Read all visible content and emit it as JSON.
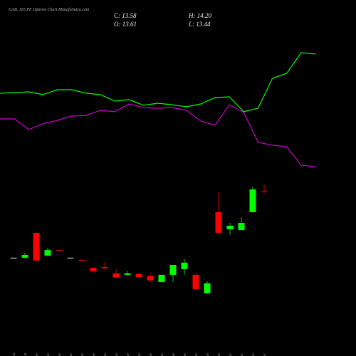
{
  "chart_data": {
    "type": "candlestick",
    "title": "GAIL 165 PE Options  Chart MunafaSutra.com",
    "header": {
      "close": "C: 13.58",
      "high": "H: 14.20",
      "open": "O: 13.61",
      "low": "L: 13.44"
    },
    "categories": [
      "29 Oct",
      "31 Oct",
      "03 Nov",
      "04 Nov",
      "06 Nov",
      "11 Nov",
      "12 Nov",
      "13 Nov",
      "14 Nov",
      "17 Nov",
      "18 Nov",
      "19 Nov",
      "20 Nov",
      "21 Nov",
      "24 Nov",
      "25 Nov",
      "26 Nov",
      "27 Nov",
      "28 Nov",
      "01 Dec",
      "02 Dec",
      "03 Dec",
      "04 Dec"
    ],
    "open": [
      8.12,
      8.12,
      10.18,
      8.29,
      8.76,
      8.12,
      7.94,
      7.29,
      7.35,
      6.82,
      6.71,
      6.76,
      6.59,
      6.12,
      6.71,
      7.18,
      6.71,
      5.18,
      11.88,
      10.47,
      10.41,
      11.88,
      13.61
    ],
    "high": [
      8.12,
      8.53,
      10.18,
      8.94,
      8.76,
      8.12,
      7.94,
      7.29,
      7.76,
      7.18,
      7.0,
      6.88,
      6.82,
      6.71,
      7.53,
      8.0,
      6.82,
      6.18,
      13.53,
      11.0,
      11.47,
      14.0,
      14.2
    ],
    "low": [
      8.12,
      8.06,
      7.88,
      8.24,
      8.71,
      8.12,
      7.88,
      6.82,
      7.18,
      6.47,
      6.65,
      6.53,
      6.12,
      6.12,
      6.12,
      6.71,
      5.41,
      5.18,
      10.18,
      10.0,
      10.41,
      11.88,
      13.44
    ],
    "close": [
      8.12,
      8.35,
      7.88,
      8.76,
      8.71,
      8.12,
      7.88,
      7.0,
      7.24,
      6.47,
      6.82,
      6.53,
      6.24,
      6.71,
      7.53,
      7.71,
      5.53,
      6.0,
      10.18,
      10.76,
      11.0,
      13.76,
      13.58
    ],
    "up_color": "#00ff00",
    "down_color": "#ff0000",
    "flat_color": "#ffffff",
    "lines": [
      {
        "color": "#00ff00",
        "values": [
          21.71,
          21.76,
          21.82,
          21.59,
          22.0,
          22.0,
          21.71,
          21.59,
          21.06,
          21.18,
          20.71,
          20.88,
          20.76,
          20.59,
          20.82,
          21.35,
          21.41,
          20.18,
          20.47,
          22.94,
          23.35,
          25.06,
          24.94
        ]
      },
      {
        "color": "#cc00cc",
        "values": [
          19.59,
          19.59,
          18.71,
          19.18,
          19.47,
          19.82,
          19.88,
          20.29,
          20.18,
          20.82,
          20.53,
          20.47,
          20.53,
          20.29,
          19.41,
          19.06,
          20.76,
          20.12,
          17.65,
          17.41,
          17.29,
          15.76,
          15.65
        ]
      }
    ],
    "ylim": [
      0,
      29.41
    ]
  }
}
